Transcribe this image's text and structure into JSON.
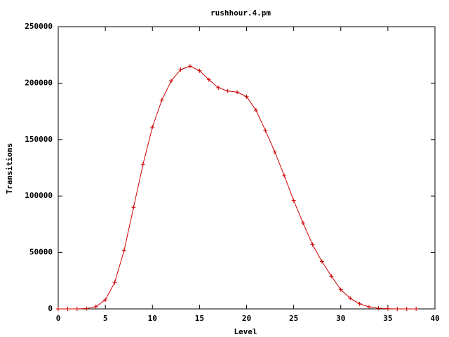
{
  "chart_data": {
    "type": "line",
    "title": "rushhour.4.pm",
    "x_label": "Level",
    "y_label": "Transitions",
    "x": [
      0,
      1,
      2,
      3,
      4,
      5,
      6,
      7,
      8,
      9,
      10,
      11,
      12,
      13,
      14,
      15,
      16,
      17,
      18,
      19,
      20,
      21,
      22,
      23,
      24,
      25,
      26,
      27,
      28,
      29,
      30,
      31,
      32,
      33,
      34,
      35,
      36,
      37,
      38
    ],
    "series": [
      {
        "color": "#cc0000",
        "values": [
          0,
          0,
          0,
          300,
          2000,
          8000,
          23500,
          52000,
          90000,
          128000,
          161000,
          185000,
          202000,
          212000,
          215000,
          211000,
          203000,
          196000,
          193000,
          192000,
          188000,
          176000,
          158000,
          139000,
          118000,
          96000,
          76000,
          57000,
          42000,
          29000,
          17000,
          9500,
          4500,
          1800,
          600,
          150,
          0,
          0,
          0
        ]
      }
    ],
    "xlim": [
      0,
      40
    ],
    "xticks": [
      0,
      5,
      10,
      15,
      20,
      25,
      30,
      35,
      40
    ],
    "ylim": [
      0,
      250000
    ],
    "yticks": [
      0,
      50000,
      100000,
      150000,
      200000,
      250000
    ]
  }
}
